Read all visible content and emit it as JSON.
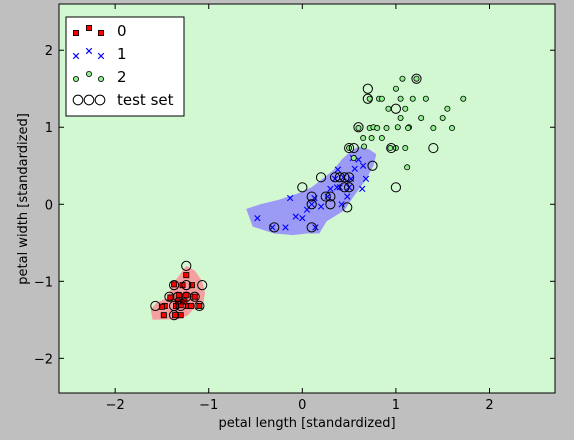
{
  "chart_data": {
    "type": "scatter",
    "title": "",
    "xlabel": "petal length [standardized]",
    "ylabel": "petal width [standardized]",
    "xlim": [
      -2.6,
      2.7
    ],
    "ylim": [
      -2.45,
      2.6
    ],
    "xticks": [
      -2,
      -1,
      0,
      1,
      2
    ],
    "xtick_labels": [
      "−2",
      "−1",
      "0",
      "1",
      "2"
    ],
    "yticks": [
      -2,
      -1,
      0,
      1,
      2
    ],
    "ytick_labels": [
      "−2",
      "−1",
      "0",
      "1",
      "2"
    ],
    "grid": false,
    "legend_position": "top-left",
    "colors": {
      "region_0": "#f5a0a0",
      "region_1": "#9b9bf5",
      "region_2": "#d2f8d2",
      "class_0": "#ff0000",
      "class_1": "#0000ff",
      "class_2": "#90ee90",
      "test": "#000000",
      "figure_bg": "#bfbfbf"
    },
    "legend": [
      {
        "label": "0",
        "marker": "square",
        "color": "#ff0000"
      },
      {
        "label": "1",
        "marker": "x",
        "color": "#0000ff"
      },
      {
        "label": "2",
        "marker": "circle",
        "color": "#90ee90"
      },
      {
        "label": "test set",
        "marker": "ring",
        "color": "#000000"
      }
    ],
    "decision_regions": [
      {
        "class": 0,
        "polygon": [
          [
            -1.45,
            -1.22
          ],
          [
            -1.35,
            -0.98
          ],
          [
            -1.24,
            -0.8
          ],
          [
            -1.15,
            -0.86
          ],
          [
            -1.07,
            -1.0
          ],
          [
            -1.04,
            -1.15
          ],
          [
            -1.06,
            -1.3
          ],
          [
            -1.17,
            -1.37
          ],
          [
            -1.22,
            -1.44
          ],
          [
            -1.32,
            -1.49
          ],
          [
            -1.6,
            -1.5
          ],
          [
            -1.62,
            -1.37
          ],
          [
            -1.56,
            -1.28
          ]
        ]
      },
      {
        "class": 1,
        "polygon": [
          [
            -0.6,
            -0.06
          ],
          [
            -0.53,
            -0.29
          ],
          [
            -0.3,
            -0.38
          ],
          [
            -0.1,
            -0.4
          ],
          [
            0.05,
            -0.38
          ],
          [
            0.18,
            -0.38
          ],
          [
            0.26,
            -0.22
          ],
          [
            0.45,
            -0.08
          ],
          [
            0.53,
            0.07
          ],
          [
            0.68,
            0.32
          ],
          [
            0.76,
            0.5
          ],
          [
            0.79,
            0.65
          ],
          [
            0.72,
            0.71
          ],
          [
            0.6,
            0.75
          ],
          [
            0.5,
            0.67
          ],
          [
            0.42,
            0.58
          ],
          [
            0.33,
            0.44
          ],
          [
            0.1,
            0.22
          ],
          [
            -0.05,
            0.14
          ],
          [
            -0.25,
            0.06
          ],
          [
            -0.45,
            0.0
          ]
        ]
      }
    ],
    "series": [
      {
        "name": "0",
        "marker": "square",
        "points": [
          [
            -1.35,
            -1.32
          ],
          [
            -1.3,
            -1.31
          ],
          [
            -1.32,
            -1.18
          ],
          [
            -1.28,
            -1.05
          ],
          [
            -1.24,
            -1.18
          ],
          [
            -1.22,
            -1.32
          ],
          [
            -1.18,
            -1.05
          ],
          [
            -1.15,
            -1.2
          ],
          [
            -1.1,
            -1.32
          ],
          [
            -1.24,
            -0.92
          ],
          [
            -1.37,
            -1.04
          ],
          [
            -1.41,
            -1.21
          ],
          [
            -1.47,
            -1.32
          ],
          [
            -1.36,
            -1.44
          ],
          [
            -1.48,
            -1.44
          ],
          [
            -1.3,
            -1.44
          ],
          [
            -1.19,
            -1.32
          ],
          [
            -1.26,
            -1.26
          ],
          [
            -1.33,
            -1.26
          ],
          [
            -1.5,
            -1.33
          ]
        ]
      },
      {
        "name": "1",
        "marker": "x",
        "points": [
          [
            -0.48,
            -0.18
          ],
          [
            -0.13,
            0.08
          ],
          [
            -0.07,
            -0.16
          ],
          [
            0.0,
            -0.18
          ],
          [
            0.05,
            -0.07
          ],
          [
            0.1,
            0.0
          ],
          [
            0.13,
            0.08
          ],
          [
            0.2,
            -0.03
          ],
          [
            0.27,
            0.1
          ],
          [
            0.3,
            0.2
          ],
          [
            0.35,
            0.33
          ],
          [
            0.38,
            0.45
          ],
          [
            0.4,
            0.22
          ],
          [
            0.44,
            0.35
          ],
          [
            0.48,
            0.1
          ],
          [
            0.5,
            0.22
          ],
          [
            0.52,
            0.33
          ],
          [
            0.56,
            0.46
          ],
          [
            0.6,
            0.58
          ],
          [
            0.65,
            0.5
          ],
          [
            0.68,
            0.33
          ],
          [
            0.64,
            0.2
          ],
          [
            -0.18,
            -0.3
          ],
          [
            -0.32,
            -0.3
          ],
          [
            0.14,
            -0.3
          ],
          [
            0.42,
            0.0
          ],
          [
            0.54,
            0.6
          ],
          [
            0.37,
            0.22
          ]
        ]
      },
      {
        "name": "2",
        "marker": "circle",
        "points": [
          [
            0.66,
            0.75
          ],
          [
            0.72,
            0.99
          ],
          [
            0.76,
            1.0
          ],
          [
            0.8,
            0.99
          ],
          [
            0.85,
            0.86
          ],
          [
            0.9,
            0.99
          ],
          [
            0.94,
            0.73
          ],
          [
            1.0,
            0.73
          ],
          [
            1.05,
            1.12
          ],
          [
            1.1,
            0.73
          ],
          [
            1.14,
            1.0
          ],
          [
            1.18,
            1.37
          ],
          [
            1.22,
            1.63
          ],
          [
            1.27,
            1.12
          ],
          [
            1.32,
            1.37
          ],
          [
            1.05,
            1.37
          ],
          [
            1.07,
            1.63
          ],
          [
            1.13,
            0.99
          ],
          [
            1.0,
            1.5
          ],
          [
            1.5,
            1.12
          ],
          [
            1.55,
            1.24
          ],
          [
            1.6,
            0.99
          ],
          [
            1.4,
            0.99
          ],
          [
            1.72,
            1.37
          ],
          [
            0.82,
            1.37
          ],
          [
            0.92,
            1.24
          ],
          [
            0.74,
            0.86
          ],
          [
            0.85,
            1.37
          ],
          [
            0.72,
            1.37
          ],
          [
            1.02,
            1.0
          ],
          [
            1.12,
            0.48
          ],
          [
            0.6,
            0.99
          ],
          [
            0.65,
            0.86
          ],
          [
            0.55,
            0.6
          ],
          [
            0.5,
            0.73
          ],
          [
            1.1,
            1.24
          ]
        ]
      },
      {
        "name": "test set",
        "marker": "ring",
        "points": [
          [
            -1.24,
            -0.8
          ],
          [
            -1.37,
            -1.05
          ],
          [
            -1.24,
            -1.05
          ],
          [
            -1.07,
            -1.05
          ],
          [
            -1.33,
            -1.2
          ],
          [
            -1.24,
            -1.2
          ],
          [
            -1.42,
            -1.2
          ],
          [
            -1.15,
            -1.2
          ],
          [
            -1.57,
            -1.32
          ],
          [
            -1.37,
            -1.32
          ],
          [
            -1.3,
            -1.32
          ],
          [
            -1.1,
            -1.32
          ],
          [
            -1.37,
            -1.44
          ],
          [
            0.0,
            0.22
          ],
          [
            0.2,
            0.35
          ],
          [
            0.35,
            0.35
          ],
          [
            0.4,
            0.35
          ],
          [
            0.45,
            0.35
          ],
          [
            0.5,
            0.35
          ],
          [
            0.5,
            0.73
          ],
          [
            0.55,
            0.73
          ],
          [
            0.6,
            1.0
          ],
          [
            0.7,
            1.5
          ],
          [
            0.7,
            1.37
          ],
          [
            0.75,
            0.5
          ],
          [
            0.45,
            0.22
          ],
          [
            0.5,
            0.22
          ],
          [
            0.1,
            0.1
          ],
          [
            0.25,
            0.1
          ],
          [
            0.3,
            0.1
          ],
          [
            0.1,
            0.0
          ],
          [
            0.3,
            0.0
          ],
          [
            0.48,
            -0.04
          ],
          [
            -0.3,
            -0.3
          ],
          [
            0.1,
            -0.3
          ],
          [
            0.95,
            0.73
          ],
          [
            1.0,
            0.22
          ],
          [
            1.0,
            1.24
          ],
          [
            1.22,
            1.63
          ],
          [
            1.4,
            0.73
          ]
        ]
      }
    ]
  }
}
